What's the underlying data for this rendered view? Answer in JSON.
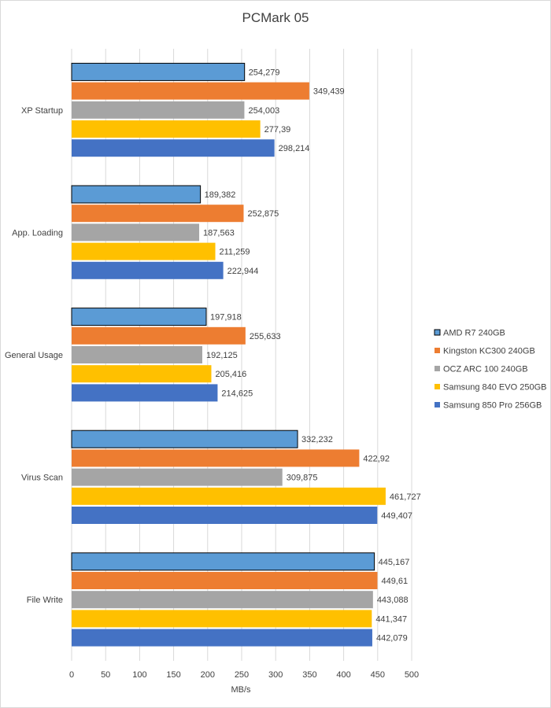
{
  "chart_data": {
    "type": "bar",
    "orientation": "horizontal",
    "title": "PCMark 05",
    "xlabel": "MB/s",
    "ylabel": "",
    "xlim": [
      0,
      500
    ],
    "ticks": [
      0,
      50,
      100,
      150,
      200,
      250,
      300,
      350,
      400,
      450,
      500
    ],
    "grid": true,
    "legend_position": "right",
    "categories": [
      "XP Startup",
      "App. Loading",
      "General Usage",
      "Virus Scan",
      "File Write"
    ],
    "series": [
      {
        "name": "AMD R7 240GB",
        "color": "#5b9bd5",
        "outlined": true,
        "values": [
          254.279,
          189.382,
          197.918,
          332.232,
          445.167
        ],
        "labels": [
          "254,279",
          "189,382",
          "197,918",
          "332,232",
          "445,167"
        ]
      },
      {
        "name": "Kingston KC300 240GB",
        "color": "#ed7d31",
        "outlined": false,
        "values": [
          349.439,
          252.875,
          255.633,
          422.92,
          449.61
        ],
        "labels": [
          "349,439",
          "252,875",
          "255,633",
          "422,92",
          "449,61"
        ]
      },
      {
        "name": "OCZ ARC 100 240GB",
        "color": "#a5a5a5",
        "outlined": false,
        "values": [
          254.003,
          187.563,
          192.125,
          309.875,
          443.088
        ],
        "labels": [
          "254,003",
          "187,563",
          "192,125",
          "309,875",
          "443,088"
        ]
      },
      {
        "name": "Samsung 840 EVO 250GB",
        "color": "#ffc000",
        "outlined": false,
        "values": [
          277.39,
          211.259,
          205.416,
          461.727,
          441.347
        ],
        "labels": [
          "277,39",
          "211,259",
          "205,416",
          "461,727",
          "441,347"
        ]
      },
      {
        "name": "Samsung 850 Pro 256GB",
        "color": "#4472c4",
        "outlined": false,
        "values": [
          298.214,
          222.944,
          214.625,
          449.407,
          442.079
        ],
        "labels": [
          "298,214",
          "222,944",
          "214,625",
          "449,407",
          "442,079"
        ]
      }
    ]
  }
}
